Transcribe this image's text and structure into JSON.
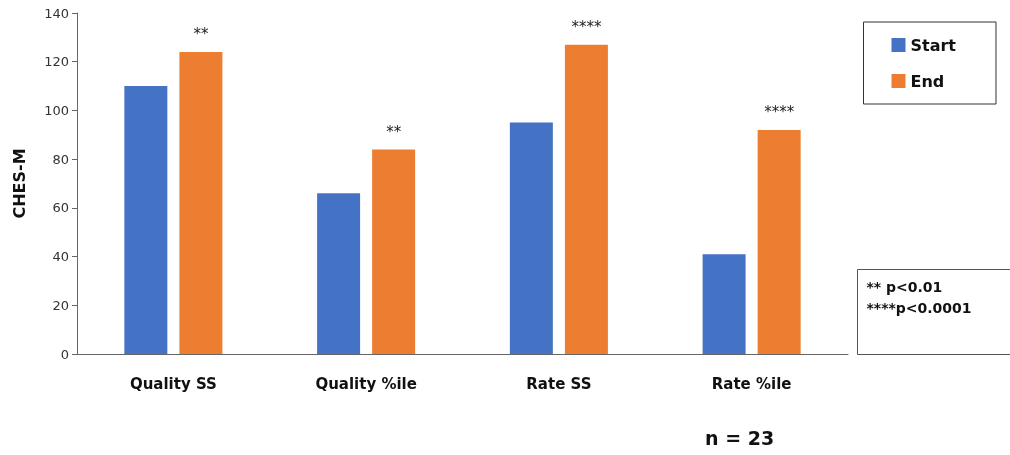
{
  "chart_data": {
    "type": "bar",
    "ylabel": "CHES-M",
    "categories": [
      "Quality SS",
      "Quality %ile",
      "Rate SS",
      "Rate %ile"
    ],
    "series": [
      {
        "name": "Start",
        "color": "#4472c4",
        "values": [
          110,
          66,
          95,
          41
        ]
      },
      {
        "name": "End",
        "color": "#ed7d31",
        "values": [
          124,
          84,
          127,
          92
        ]
      }
    ],
    "ylim": [
      0,
      140
    ],
    "yticks": [
      0,
      20,
      40,
      60,
      80,
      100,
      120,
      140
    ],
    "grid": false,
    "legend": "top right",
    "annotations": [
      "**",
      "**",
      "****",
      "****",
      "** p<0.01\n****p<0.0001",
      "n = 23"
    ]
  }
}
